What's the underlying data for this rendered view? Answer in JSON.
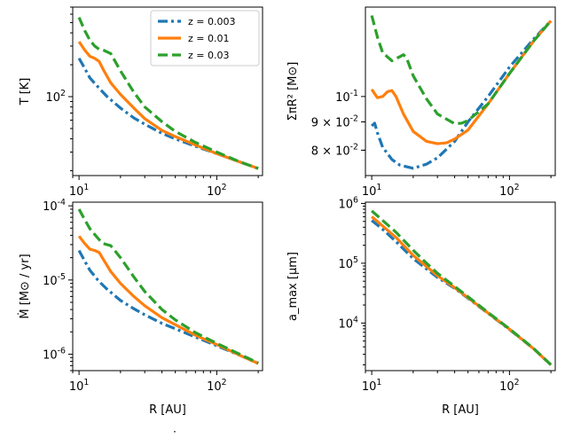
{
  "figure": {
    "legend": {
      "placement": "upper-right of top-left panel",
      "entries": [
        {
          "label": "z = 0.003",
          "color": "#1f77b4",
          "style": "dashdot"
        },
        {
          "label": "z = 0.01",
          "color": "#ff7f0e",
          "style": "solid"
        },
        {
          "label": "z = 0.03",
          "color": "#2ca02c",
          "style": "dashed"
        }
      ]
    },
    "footer_mark": "˙"
  },
  "chart_data": [
    {
      "type": "line",
      "panel": "top-left",
      "ylabel": "T [K]",
      "xlabel": "",
      "xscale": "log",
      "yscale": "log",
      "xlim": [
        9.0,
        215.0
      ],
      "ylim": [
        18.0,
        700.0
      ],
      "xticks": [
        {
          "value": 10,
          "label": "10^1"
        },
        {
          "value": 100,
          "label": "10^2"
        }
      ],
      "yticks": [
        {
          "value": 100,
          "label": "10^2"
        }
      ],
      "grid": false,
      "series": [
        {
          "name": "z = 0.003",
          "color": "#1f77b4",
          "style": "dashdot",
          "x": [
            10,
            11,
            12,
            14,
            16,
            20,
            25,
            30,
            40,
            50,
            70,
            100,
            150,
            200
          ],
          "y": [
            230,
            185,
            150,
            120,
            100,
            78,
            63,
            55,
            45,
            40,
            34,
            29,
            24,
            21
          ]
        },
        {
          "name": "z = 0.01",
          "color": "#ff7f0e",
          "style": "solid",
          "x": [
            10,
            11,
            12,
            13,
            14,
            15,
            17,
            20,
            25,
            30,
            40,
            50,
            70,
            100,
            150,
            200
          ],
          "y": [
            330,
            275,
            240,
            230,
            215,
            180,
            135,
            105,
            78,
            62,
            48,
            42,
            35,
            29,
            24,
            21
          ]
        },
        {
          "name": "z = 0.03",
          "color": "#2ca02c",
          "style": "dashed",
          "x": [
            10,
            11,
            12,
            13,
            14,
            15,
            17,
            20,
            25,
            30,
            40,
            50,
            70,
            100,
            150,
            200
          ],
          "y": [
            560,
            420,
            340,
            300,
            280,
            275,
            255,
            175,
            110,
            80,
            58,
            47,
            37,
            30,
            24,
            21
          ]
        }
      ]
    },
    {
      "type": "line",
      "panel": "top-right",
      "ylabel": "ΣπR² [M⊙]",
      "xlabel": "",
      "xscale": "log",
      "yscale": "log",
      "xlim": [
        9.0,
        215.0
      ],
      "ylim": [
        0.072,
        0.145
      ],
      "xticks": [
        {
          "value": 10,
          "label": "10^1"
        },
        {
          "value": 100,
          "label": "10^2"
        }
      ],
      "yticks": [
        {
          "value": 0.1,
          "label": "10^-1"
        },
        {
          "value": 0.09,
          "label": "9 × 10^-2"
        },
        {
          "value": 0.08,
          "label": "8 × 10^-2"
        }
      ],
      "grid": false,
      "series": [
        {
          "name": "z = 0.003",
          "color": "#1f77b4",
          "style": "dashdot",
          "x": [
            10,
            10.5,
            11,
            12,
            14,
            16,
            20,
            25,
            30,
            40,
            50,
            70,
            100,
            150,
            200
          ],
          "y": [
            0.0885,
            0.0895,
            0.086,
            0.081,
            0.077,
            0.0752,
            0.0742,
            0.0755,
            0.0775,
            0.083,
            0.09,
            0.1,
            0.113,
            0.127,
            0.137
          ]
        },
        {
          "name": "z = 0.01",
          "color": "#ff7f0e",
          "style": "solid",
          "x": [
            10,
            11,
            12,
            13,
            14,
            15,
            17,
            20,
            25,
            30,
            35,
            40,
            50,
            70,
            100,
            150,
            200
          ],
          "y": [
            0.103,
            0.0995,
            0.1,
            0.102,
            0.1025,
            0.1,
            0.093,
            0.0865,
            0.083,
            0.0822,
            0.0825,
            0.0838,
            0.087,
            0.097,
            0.11,
            0.126,
            0.137
          ]
        },
        {
          "name": "z = 0.03",
          "color": "#2ca02c",
          "style": "dashed",
          "x": [
            10,
            11,
            12,
            14,
            16,
            17,
            18,
            20,
            25,
            30,
            40,
            45,
            50,
            70,
            100,
            150,
            200
          ],
          "y": [
            0.14,
            0.128,
            0.12,
            0.116,
            0.118,
            0.119,
            0.117,
            0.109,
            0.099,
            0.093,
            0.0893,
            0.0895,
            0.0905,
            0.097,
            0.11,
            0.126,
            0.137
          ]
        }
      ]
    },
    {
      "type": "line",
      "panel": "bottom-left",
      "ylabel": "Ṁ [M⊙ / yr]",
      "xlabel": "R [AU]",
      "xscale": "log",
      "yscale": "log",
      "xlim": [
        9.0,
        215.0
      ],
      "ylim": [
        6e-07,
        0.000112
      ],
      "xticks": [
        {
          "value": 10,
          "label": "10^1"
        },
        {
          "value": 100,
          "label": "10^2"
        }
      ],
      "yticks": [
        {
          "value": 0.0001,
          "label": "10^-4"
        },
        {
          "value": 1e-05,
          "label": "10^-5"
        },
        {
          "value": 1e-06,
          "label": "10^-6"
        }
      ],
      "grid": false,
      "series": [
        {
          "name": "z = 0.003",
          "color": "#1f77b4",
          "style": "dashdot",
          "x": [
            10,
            11,
            12,
            14,
            16,
            20,
            25,
            30,
            40,
            50,
            70,
            100,
            150,
            200
          ],
          "y": [
            2.5e-05,
            1.8e-05,
            1.35e-05,
            9.5e-06,
            7.5e-06,
            5.3e-06,
            4.1e-06,
            3.4e-06,
            2.6e-06,
            2.2e-06,
            1.7e-06,
            1.3e-06,
            9.5e-07,
            7.5e-07
          ]
        },
        {
          "name": "z = 0.01",
          "color": "#ff7f0e",
          "style": "solid",
          "x": [
            10,
            11,
            12,
            13,
            14,
            15,
            17,
            20,
            25,
            30,
            40,
            50,
            70,
            100,
            150,
            200
          ],
          "y": [
            3.9e-05,
            3.1e-05,
            2.6e-05,
            2.5e-05,
            2.35e-05,
            1.9e-05,
            1.3e-05,
            9e-06,
            6e-06,
            4.5e-06,
            3.1e-06,
            2.5e-06,
            1.8e-06,
            1.35e-06,
            9.5e-07,
            7.5e-07
          ]
        },
        {
          "name": "z = 0.03",
          "color": "#2ca02c",
          "style": "dashed",
          "x": [
            10,
            11,
            12,
            13,
            14,
            15,
            17,
            20,
            25,
            30,
            40,
            50,
            70,
            100,
            150,
            200
          ],
          "y": [
            9e-05,
            6.5e-05,
            4.9e-05,
            4.1e-05,
            3.5e-05,
            3.1e-05,
            2.9e-05,
            2e-05,
            1.1e-05,
            7e-06,
            4e-06,
            2.9e-06,
            1.95e-06,
            1.4e-06,
            9.8e-07,
            7.6e-07
          ]
        }
      ]
    },
    {
      "type": "line",
      "panel": "bottom-right",
      "ylabel": "a_max [μm]",
      "xlabel": "R [AU]",
      "xscale": "log",
      "yscale": "log",
      "xlim": [
        9.0,
        215.0
      ],
      "ylim": [
        1600,
        1050000.0
      ],
      "xticks": [
        {
          "value": 10,
          "label": "10^1"
        },
        {
          "value": 100,
          "label": "10^2"
        }
      ],
      "yticks": [
        {
          "value": 1000000.0,
          "label": "10^6"
        },
        {
          "value": 100000.0,
          "label": "10^5"
        },
        {
          "value": 10000.0,
          "label": "10^4"
        }
      ],
      "grid": false,
      "series": [
        {
          "name": "z = 0.003",
          "color": "#1f77b4",
          "style": "dashdot",
          "x": [
            10,
            12,
            15,
            20,
            25,
            30,
            40,
            50,
            70,
            100,
            150,
            200
          ],
          "y": [
            520000,
            370000,
            230000,
            120000,
            80000,
            58000,
            38000,
            26000,
            14500,
            7800,
            3700,
            2000
          ]
        },
        {
          "name": "z = 0.01",
          "color": "#ff7f0e",
          "style": "solid",
          "x": [
            10,
            12,
            15,
            20,
            25,
            30,
            40,
            50,
            70,
            100,
            150,
            200
          ],
          "y": [
            600000,
            420000,
            270000,
            135000,
            88000,
            62000,
            39000,
            26500,
            14700,
            7900,
            3700,
            2000
          ]
        },
        {
          "name": "z = 0.03",
          "color": "#2ca02c",
          "style": "dashed",
          "x": [
            10,
            12,
            15,
            20,
            25,
            30,
            40,
            50,
            70,
            100,
            150,
            200
          ],
          "y": [
            750000,
            520000,
            330000,
            165000,
            100000,
            68000,
            41000,
            27500,
            15000,
            8000,
            3750,
            2000
          ]
        }
      ]
    }
  ]
}
